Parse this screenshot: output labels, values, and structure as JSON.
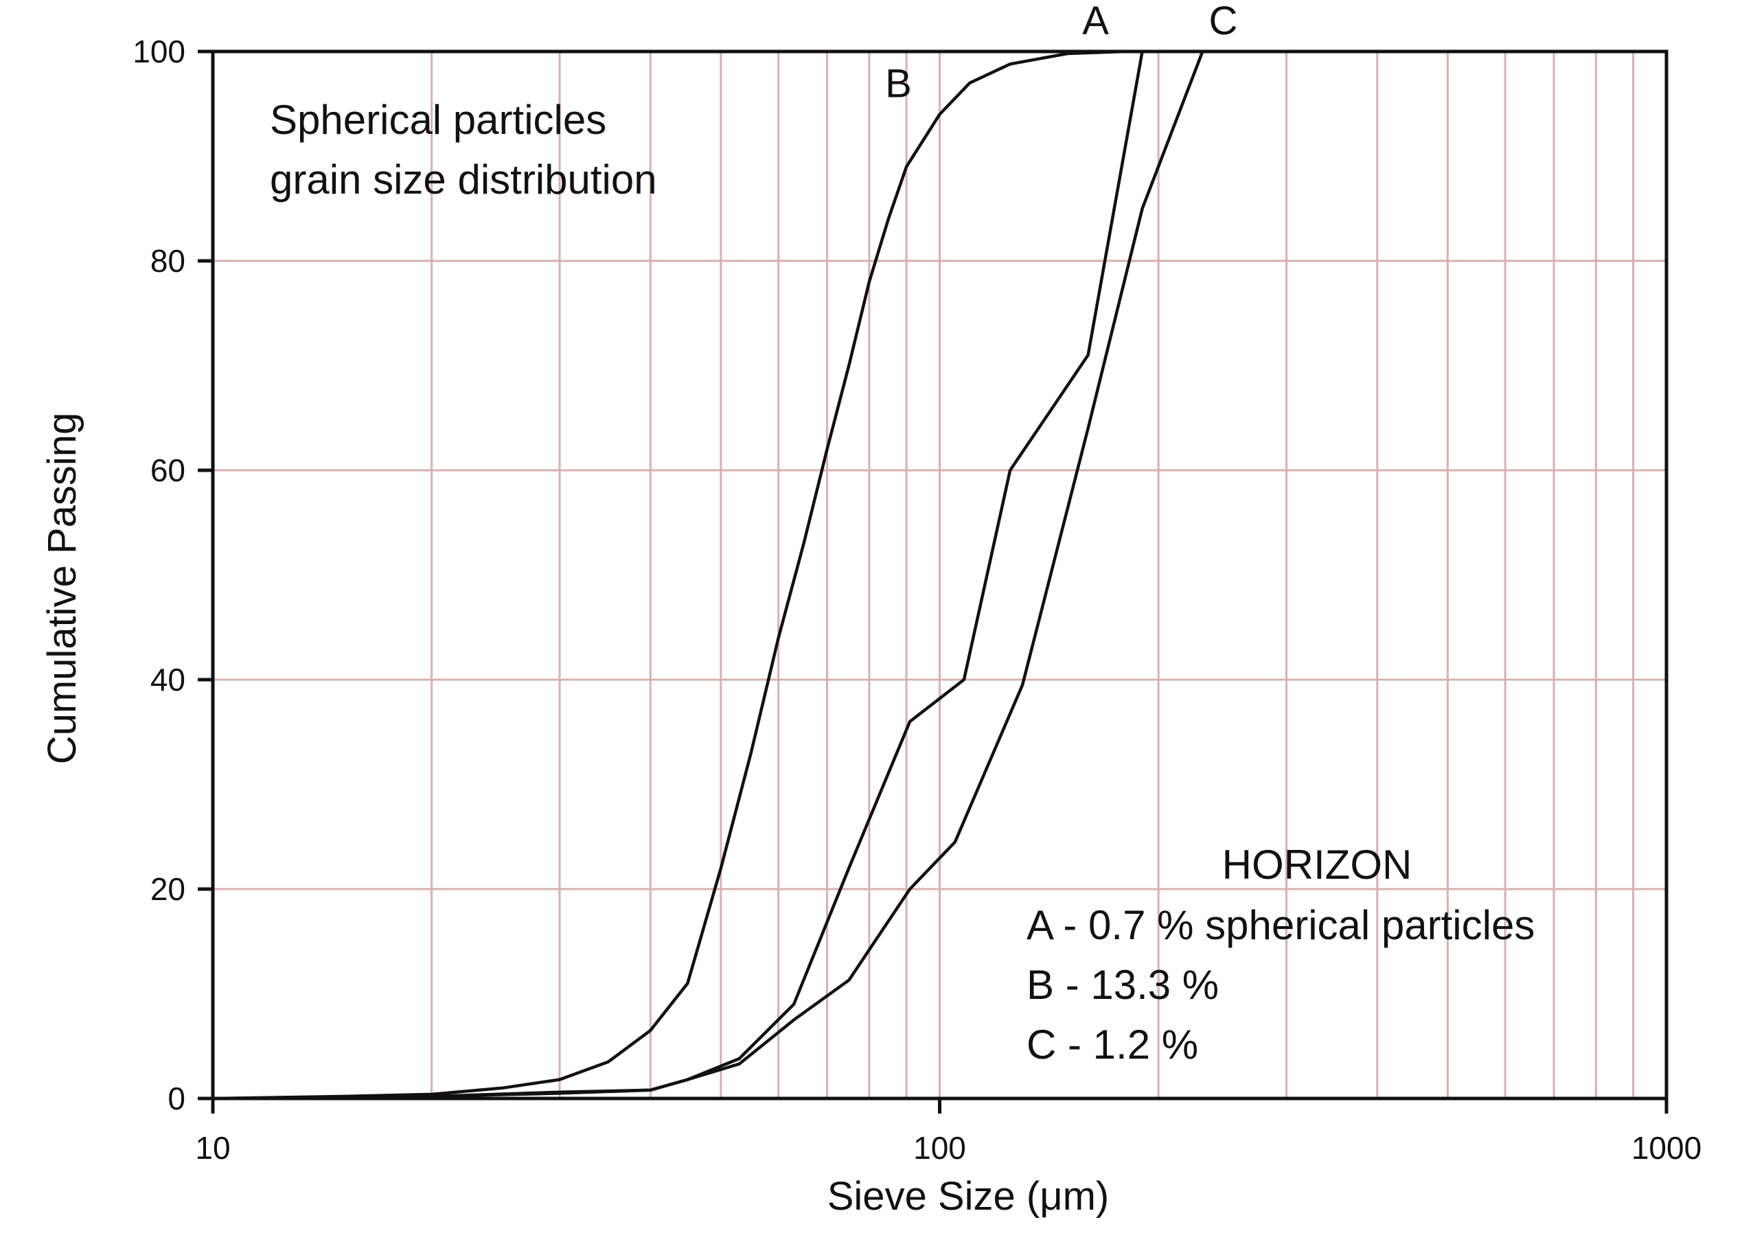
{
  "chart_data": {
    "type": "line",
    "title": "",
    "xlabel": "Sieve Size (μm)",
    "ylabel": "Cumulative Passing",
    "xscale": "log",
    "xlim": [
      10,
      1000
    ],
    "ylim": [
      0,
      100
    ],
    "x_ticks": [
      10,
      100,
      1000
    ],
    "x_tick_labels": [
      "10",
      "100",
      "1000"
    ],
    "y_ticks": [
      0,
      20,
      40,
      60,
      80,
      100
    ],
    "y_tick_labels": [
      "0",
      "20",
      "40",
      "60",
      "80",
      "100"
    ],
    "grid": true,
    "annotations": {
      "subtitle_line1": "Spherical particles",
      "subtitle_line2": "grain size distribution",
      "legend_title": "HORIZON",
      "legend_lines": [
        "A - 0.7 % spherical particles",
        "B - 13.3 %",
        "C - 1.2 %"
      ]
    },
    "series": [
      {
        "name": "A",
        "points": [
          [
            10,
            0
          ],
          [
            20,
            0.2
          ],
          [
            30,
            0.6
          ],
          [
            40,
            0.8
          ],
          [
            45,
            1.8
          ],
          [
            53,
            3.8
          ],
          [
            63,
            9
          ],
          [
            75,
            22
          ],
          [
            91,
            36
          ],
          [
            108,
            40
          ],
          [
            125,
            60
          ],
          [
            160,
            71
          ],
          [
            190,
            100
          ]
        ]
      },
      {
        "name": "B",
        "points": [
          [
            10,
            0
          ],
          [
            15,
            0.2
          ],
          [
            20,
            0.4
          ],
          [
            25,
            1
          ],
          [
            30,
            1.8
          ],
          [
            35,
            3.5
          ],
          [
            40,
            6.5
          ],
          [
            45,
            11
          ],
          [
            50,
            22
          ],
          [
            55,
            33
          ],
          [
            60,
            44
          ],
          [
            65,
            53
          ],
          [
            70,
            62
          ],
          [
            75,
            70
          ],
          [
            80,
            78
          ],
          [
            85,
            84
          ],
          [
            90,
            89
          ],
          [
            100,
            94
          ],
          [
            110,
            97
          ],
          [
            125,
            98.8
          ],
          [
            150,
            99.8
          ],
          [
            180,
            100
          ]
        ]
      },
      {
        "name": "C",
        "points": [
          [
            10,
            0
          ],
          [
            20,
            0.2
          ],
          [
            30,
            0.5
          ],
          [
            40,
            0.8
          ],
          [
            45,
            1.8
          ],
          [
            53,
            3.3
          ],
          [
            63,
            7.5
          ],
          [
            75,
            11.3
          ],
          [
            91,
            20
          ],
          [
            105,
            24.5
          ],
          [
            130,
            39.5
          ],
          [
            160,
            64
          ],
          [
            190,
            85
          ],
          [
            230,
            100
          ]
        ]
      }
    ]
  }
}
